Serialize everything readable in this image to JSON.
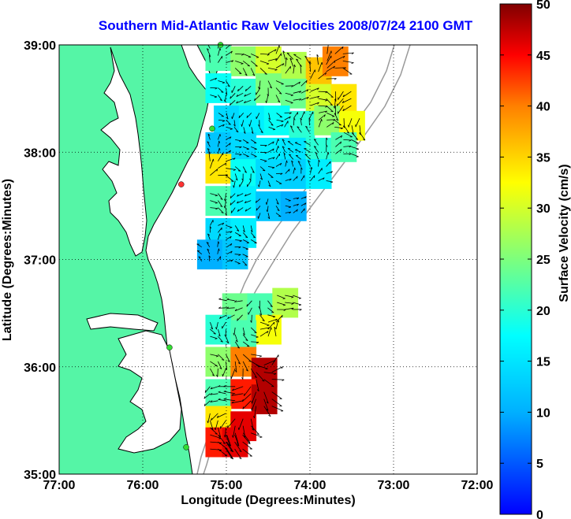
{
  "title": "Southern Mid-Atlantic Raw Velocities 2008/07/24 2100 GMT",
  "axes": {
    "xlabel": "Longitude (Degrees:Minutes)",
    "ylabel": "Latitude (Degrees:Minutes)",
    "x_ticks": [
      "77:00",
      "76:00",
      "75:00",
      "74:00",
      "73:00",
      "72:00"
    ],
    "y_ticks": [
      "39:00",
      "38:00",
      "37:00",
      "36:00",
      "35:00"
    ],
    "x_range": [
      -77,
      -72
    ],
    "y_range": [
      35,
      39
    ],
    "grid": "dotted"
  },
  "colorbar": {
    "label": "Surface Velocity (cm/s)",
    "ticks": [
      "0",
      "5",
      "10",
      "15",
      "20",
      "25",
      "30",
      "35",
      "40",
      "45",
      "50"
    ],
    "range": [
      0,
      50
    ],
    "colormap": "jet"
  },
  "colors": {
    "land": "#55f5a6",
    "ocean": "#ffffff",
    "coastline": "#000000",
    "bathymetry": "#9a9a9a",
    "title": "#0000ff",
    "station": "#33dd33",
    "station_alt": "#ff3333"
  },
  "chart_data": {
    "type": "heatmap",
    "regions": [
      {
        "name": "northern",
        "cells": [
          [
            -75.1,
            38.9,
            22
          ],
          [
            -74.8,
            38.85,
            26
          ],
          [
            -74.5,
            38.85,
            30
          ],
          [
            -74.2,
            38.8,
            28
          ],
          [
            -73.9,
            38.75,
            36
          ],
          [
            -73.7,
            38.85,
            40
          ],
          [
            -75.1,
            38.6,
            18
          ],
          [
            -74.8,
            38.55,
            20
          ],
          [
            -74.5,
            38.6,
            25
          ],
          [
            -74.2,
            38.55,
            24
          ],
          [
            -73.9,
            38.5,
            30
          ],
          [
            -73.6,
            38.5,
            34
          ],
          [
            -75.0,
            38.3,
            14
          ],
          [
            -74.7,
            38.3,
            16
          ],
          [
            -74.4,
            38.3,
            18
          ],
          [
            -74.1,
            38.25,
            20
          ],
          [
            -73.8,
            38.3,
            26
          ],
          [
            -73.5,
            38.25,
            32
          ],
          [
            -75.1,
            38.05,
            12
          ],
          [
            -74.8,
            38.05,
            14
          ],
          [
            -74.5,
            38.0,
            16
          ],
          [
            -74.2,
            38.0,
            15
          ],
          [
            -73.9,
            38.0,
            20
          ],
          [
            -73.6,
            38.05,
            22
          ],
          [
            -75.1,
            37.85,
            34
          ],
          [
            -74.8,
            37.8,
            18
          ],
          [
            -74.5,
            37.8,
            14
          ],
          [
            -74.2,
            37.8,
            13
          ],
          [
            -73.9,
            37.8,
            16
          ],
          [
            -75.1,
            37.55,
            22
          ],
          [
            -74.8,
            37.55,
            16
          ],
          [
            -74.5,
            37.5,
            12
          ],
          [
            -74.2,
            37.5,
            10
          ],
          [
            -75.1,
            37.25,
            14
          ],
          [
            -74.8,
            37.25,
            16
          ],
          [
            -75.2,
            37.05,
            10
          ],
          [
            -74.9,
            37.05,
            12
          ]
        ]
      },
      {
        "name": "southern",
        "cells": [
          [
            -74.9,
            36.55,
            24
          ],
          [
            -74.6,
            36.55,
            22
          ],
          [
            -74.3,
            36.6,
            28
          ],
          [
            -74.5,
            36.35,
            32
          ],
          [
            -75.1,
            36.35,
            20
          ],
          [
            -74.8,
            36.3,
            22
          ],
          [
            -75.1,
            36.05,
            26
          ],
          [
            -74.8,
            36.05,
            40
          ],
          [
            -74.55,
            35.95,
            48
          ],
          [
            -75.1,
            35.75,
            22
          ],
          [
            -74.8,
            35.75,
            44
          ],
          [
            -74.55,
            35.7,
            48
          ],
          [
            -75.1,
            35.5,
            34
          ],
          [
            -74.8,
            35.45,
            46
          ],
          [
            -75.1,
            35.3,
            44
          ],
          [
            -74.9,
            35.3,
            46
          ]
        ]
      }
    ],
    "stations": [
      {
        "lon": -75.07,
        "lat": 39.0,
        "status": "active"
      },
      {
        "lon": -75.17,
        "lat": 38.22,
        "status": "active"
      },
      {
        "lon": -75.54,
        "lat": 37.7,
        "status": "inactive"
      },
      {
        "lon": -75.68,
        "lat": 36.18,
        "status": "active"
      },
      {
        "lon": -75.48,
        "lat": 35.25,
        "status": "active"
      }
    ]
  }
}
